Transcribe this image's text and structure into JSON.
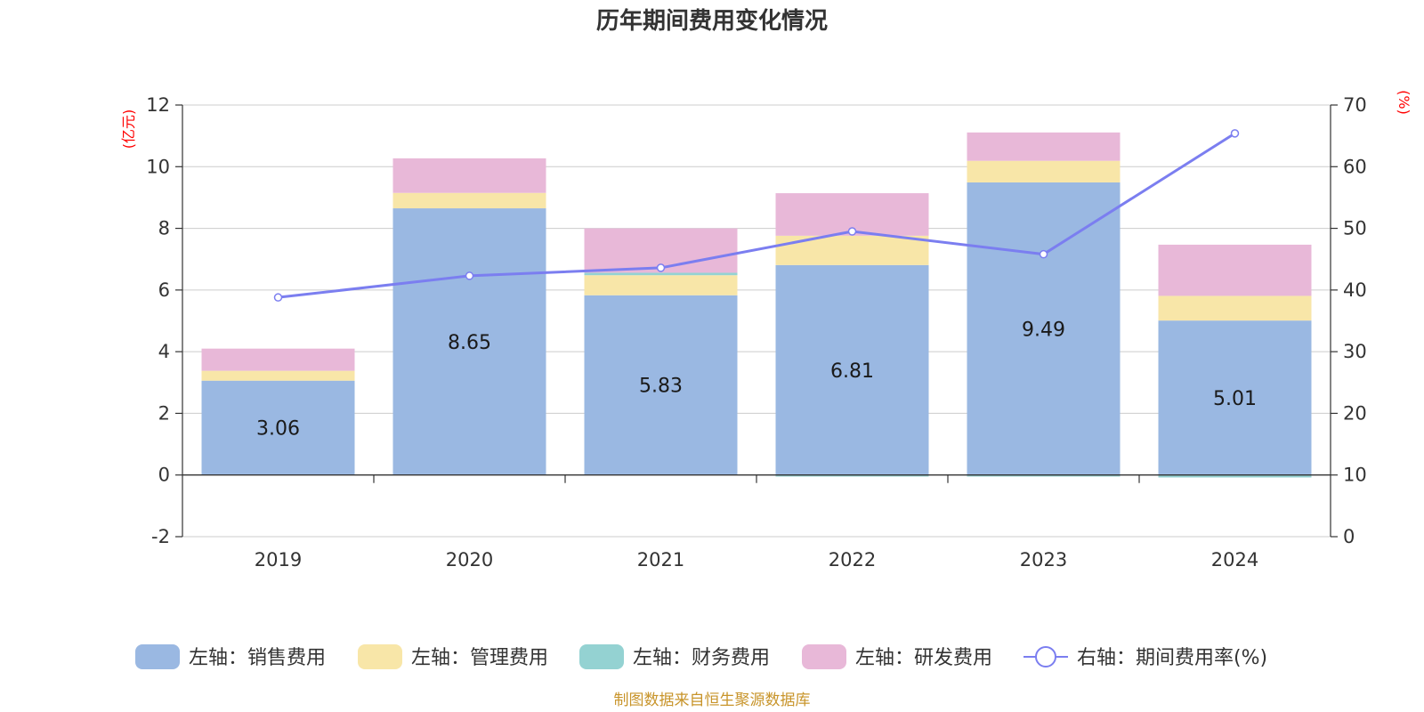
{
  "chart_data": {
    "type": "bar",
    "title": "历年期间费用变化情况",
    "categories": [
      "2019",
      "2020",
      "2021",
      "2022",
      "2023",
      "2024"
    ],
    "left_axis": {
      "unit": "(亿元)",
      "ylim": [
        -2,
        12
      ],
      "ticks": [
        "-2",
        "0",
        "2",
        "4",
        "6",
        "8",
        "10",
        "12"
      ]
    },
    "right_axis": {
      "unit": "(%)",
      "ylim": [
        0,
        70
      ],
      "ticks": [
        "0",
        "10",
        "20",
        "30",
        "40",
        "50",
        "60",
        "70"
      ]
    },
    "series": [
      {
        "name": "左轴：销售费用",
        "color": "#9ab8e2",
        "values": [
          3.06,
          8.65,
          5.83,
          6.81,
          9.49,
          5.01
        ],
        "labels": [
          "3.06",
          "8.65",
          "5.83",
          "6.81",
          "9.49",
          "5.01"
        ]
      },
      {
        "name": "左轴：管理费用",
        "color": "#f8e6a8",
        "values": [
          0.32,
          0.5,
          0.65,
          0.95,
          0.7,
          0.8
        ]
      },
      {
        "name": "左轴：财务费用",
        "color": "#94d2d2",
        "values": [
          0.0,
          0.0,
          0.08,
          -0.05,
          -0.05,
          -0.08
        ]
      },
      {
        "name": "左轴：研发费用",
        "color": "#e8b8d8",
        "values": [
          0.72,
          1.12,
          1.44,
          1.38,
          0.92,
          1.66
        ]
      }
    ],
    "line": {
      "name": "右轴：期间费用率(%)",
      "color": "#7b7ef0",
      "values": [
        38.8,
        42.3,
        43.6,
        49.5,
        45.8,
        65.4
      ]
    },
    "grid": true
  },
  "source": "制图数据来自恒生聚源数据库"
}
